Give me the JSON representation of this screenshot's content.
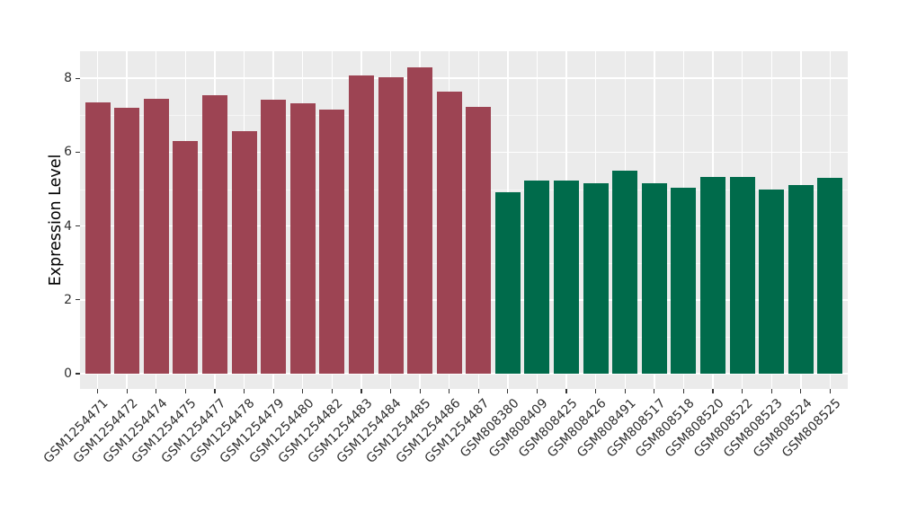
{
  "figure": {
    "background": "#ffffff",
    "panel_background": "#ebebeb",
    "grid_color": "#ffffff"
  },
  "chart_data": {
    "type": "bar",
    "title": "",
    "xlabel": "",
    "ylabel": "Expression Level",
    "ylim": [
      0,
      8.7
    ],
    "yticks": [
      0,
      2,
      4,
      6,
      8
    ],
    "yticks_minor": [
      1,
      3,
      5,
      7
    ],
    "grid": "on",
    "legend": "none",
    "categories": [
      "GSM1254471",
      "GSM1254472",
      "GSM1254474",
      "GSM1254475",
      "GSM1254477",
      "GSM1254478",
      "GSM1254479",
      "GSM1254480",
      "GSM1254482",
      "GSM1254483",
      "GSM1254484",
      "GSM1254485",
      "GSM1254486",
      "GSM1254487",
      "GSM808380",
      "GSM808409",
      "GSM808425",
      "GSM808426",
      "GSM808491",
      "GSM808517",
      "GSM808518",
      "GSM808520",
      "GSM808522",
      "GSM808523",
      "GSM808524",
      "GSM808525"
    ],
    "series": [
      {
        "name": "Expression Level",
        "values": [
          7.35,
          7.2,
          7.45,
          6.3,
          7.54,
          6.57,
          7.42,
          7.33,
          7.16,
          8.07,
          8.03,
          8.29,
          7.63,
          7.23,
          4.91,
          5.22,
          5.22,
          5.16,
          5.5,
          5.17,
          5.04,
          5.33,
          5.33,
          5.0,
          5.1,
          5.3
        ]
      }
    ],
    "bar_groups": [
      "group1",
      "group1",
      "group1",
      "group1",
      "group1",
      "group1",
      "group1",
      "group1",
      "group1",
      "group1",
      "group1",
      "group1",
      "group1",
      "group1",
      "group2",
      "group2",
      "group2",
      "group2",
      "group2",
      "group2",
      "group2",
      "group2",
      "group2",
      "group2",
      "group2",
      "group2"
    ],
    "group_colors": {
      "group1": "#9d4453",
      "group2": "#006b4b"
    }
  }
}
